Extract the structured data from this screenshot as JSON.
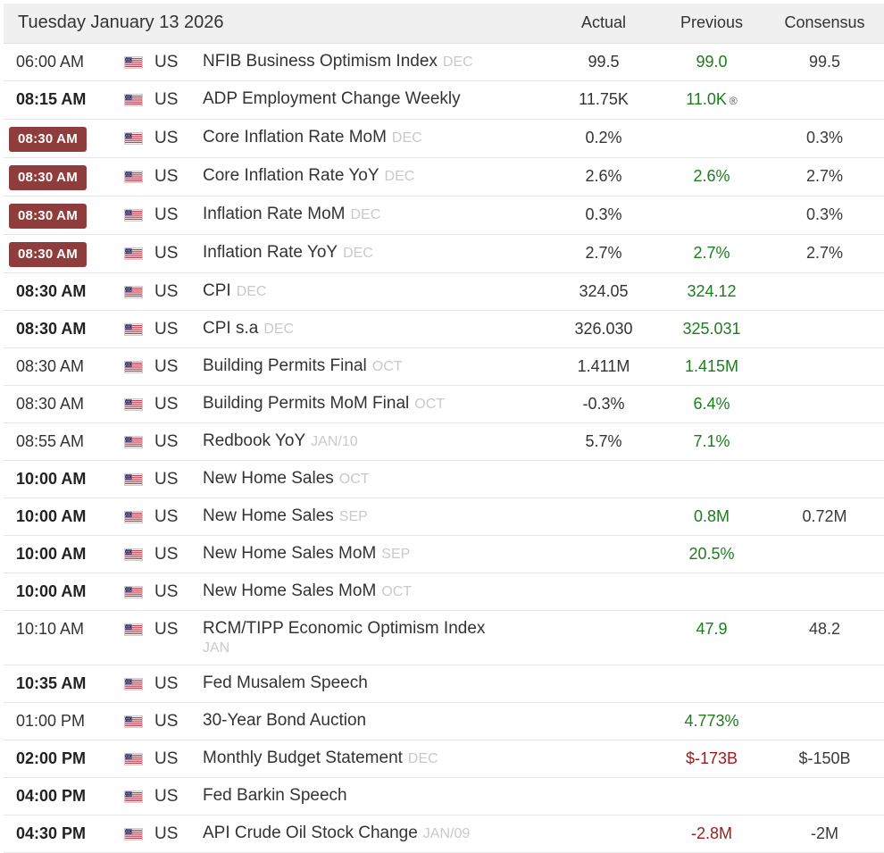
{
  "header": {
    "date_label": "Tuesday January 13 2026",
    "columns": [
      "Actual",
      "Previous",
      "Consensus"
    ]
  },
  "colors": {
    "important_badge": "#8e3c3c",
    "positive": "#1d7c1d",
    "negative": "#9e1b1b",
    "reference_text": "#c9c9c9",
    "header_bg": "#f0f0f0"
  },
  "rows": [
    {
      "time": "06:00 AM",
      "time_style": "plain",
      "country": "US",
      "event": "NFIB Business Optimism Index",
      "reference": "DEC",
      "actual": "99.5",
      "previous": "99.0",
      "previous_tone": "positive",
      "consensus": "99.5"
    },
    {
      "time": "08:15 AM",
      "time_style": "bold",
      "country": "US",
      "event": "ADP Employment Change Weekly",
      "reference": "",
      "actual": "11.75K",
      "previous": "11.0K",
      "previous_tone": "positive",
      "previous_marker": "®",
      "consensus": ""
    },
    {
      "time": "08:30 AM",
      "time_style": "badge",
      "country": "US",
      "event": "Core Inflation Rate MoM",
      "reference": "DEC",
      "actual": "0.2%",
      "previous": "",
      "consensus": "0.3%"
    },
    {
      "time": "08:30 AM",
      "time_style": "badge",
      "country": "US",
      "event": "Core Inflation Rate YoY",
      "reference": "DEC",
      "actual": "2.6%",
      "previous": "2.6%",
      "previous_tone": "positive",
      "consensus": "2.7%"
    },
    {
      "time": "08:30 AM",
      "time_style": "badge",
      "country": "US",
      "event": "Inflation Rate MoM",
      "reference": "DEC",
      "actual": "0.3%",
      "previous": "",
      "consensus": "0.3%"
    },
    {
      "time": "08:30 AM",
      "time_style": "badge",
      "country": "US",
      "event": "Inflation Rate YoY",
      "reference": "DEC",
      "actual": "2.7%",
      "previous": "2.7%",
      "previous_tone": "positive",
      "consensus": "2.7%"
    },
    {
      "time": "08:30 AM",
      "time_style": "bold",
      "country": "US",
      "event": "CPI",
      "reference": "DEC",
      "actual": "324.05",
      "previous": "324.12",
      "previous_tone": "positive",
      "consensus": ""
    },
    {
      "time": "08:30 AM",
      "time_style": "bold",
      "country": "US",
      "event": "CPI s.a",
      "reference": "DEC",
      "actual": "326.030",
      "previous": "325.031",
      "previous_tone": "positive",
      "consensus": ""
    },
    {
      "time": "08:30 AM",
      "time_style": "plain",
      "country": "US",
      "event": "Building Permits Final",
      "reference": "OCT",
      "actual": "1.411M",
      "previous": "1.415M",
      "previous_tone": "positive",
      "consensus": ""
    },
    {
      "time": "08:30 AM",
      "time_style": "plain",
      "country": "US",
      "event": "Building Permits MoM Final",
      "reference": "OCT",
      "actual": "-0.3%",
      "previous": "6.4%",
      "previous_tone": "positive",
      "consensus": ""
    },
    {
      "time": "08:55 AM",
      "time_style": "plain",
      "country": "US",
      "event": "Redbook YoY",
      "reference": "JAN/10",
      "actual": "5.7%",
      "previous": "7.1%",
      "previous_tone": "positive",
      "consensus": ""
    },
    {
      "time": "10:00 AM",
      "time_style": "bold",
      "country": "US",
      "event": "New Home Sales",
      "reference": "OCT",
      "actual": "",
      "previous": "",
      "consensus": ""
    },
    {
      "time": "10:00 AM",
      "time_style": "bold",
      "country": "US",
      "event": "New Home Sales",
      "reference": "SEP",
      "actual": "",
      "previous": "0.8M",
      "previous_tone": "positive",
      "consensus": "0.72M"
    },
    {
      "time": "10:00 AM",
      "time_style": "bold",
      "country": "US",
      "event": "New Home Sales MoM",
      "reference": "SEP",
      "actual": "",
      "previous": "20.5%",
      "previous_tone": "positive",
      "consensus": ""
    },
    {
      "time": "10:00 AM",
      "time_style": "bold",
      "country": "US",
      "event": "New Home Sales MoM",
      "reference": "OCT",
      "actual": "",
      "previous": "",
      "consensus": ""
    },
    {
      "time": "10:10 AM",
      "time_style": "plain",
      "country": "US",
      "event": "RCM/TIPP Economic Optimism Index",
      "reference": "JAN",
      "reference_block": true,
      "actual": "",
      "previous": "47.9",
      "previous_tone": "positive",
      "consensus": "48.2"
    },
    {
      "time": "10:35 AM",
      "time_style": "bold",
      "country": "US",
      "event": "Fed Musalem Speech",
      "reference": "",
      "actual": "",
      "previous": "",
      "consensus": ""
    },
    {
      "time": "01:00 PM",
      "time_style": "plain",
      "country": "US",
      "event": "30-Year Bond Auction",
      "reference": "",
      "actual": "",
      "previous": "4.773%",
      "previous_tone": "positive",
      "consensus": ""
    },
    {
      "time": "02:00 PM",
      "time_style": "bold",
      "country": "US",
      "event": "Monthly Budget Statement",
      "reference": "DEC",
      "actual": "",
      "previous": "$-173B",
      "previous_tone": "negative",
      "consensus": "$-150B"
    },
    {
      "time": "04:00 PM",
      "time_style": "bold",
      "country": "US",
      "event": "Fed Barkin Speech",
      "reference": "",
      "actual": "",
      "previous": "",
      "consensus": ""
    },
    {
      "time": "04:30 PM",
      "time_style": "bold",
      "country": "US",
      "event": "API Crude Oil Stock Change",
      "reference": "JAN/09",
      "actual": "",
      "previous": "-2.8M",
      "previous_tone": "negative",
      "consensus": "-2M"
    }
  ]
}
